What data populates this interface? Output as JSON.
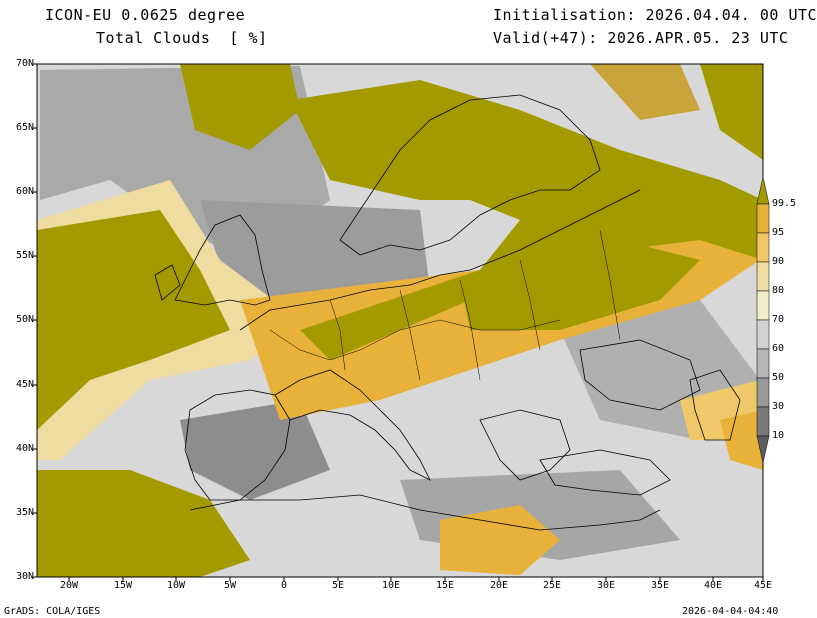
{
  "header": {
    "model": "ICON-EU 0.0625 degree",
    "variable": "Total Clouds  [ %]",
    "init": "Initialisation: 2026.04.04. 00 UTC",
    "valid": "Valid(+47): 2026.APR.05. 23 UTC"
  },
  "footer": {
    "software": "GrADS: COLA/IGES",
    "timestamp": "2026-04-04-04:40"
  },
  "map": {
    "lat_ticks": [
      "70N",
      "65N",
      "60N",
      "55N",
      "50N",
      "45N",
      "40N",
      "35N",
      "30N"
    ],
    "lon_ticks": [
      "20W",
      "15W",
      "10W",
      "5W",
      "0",
      "5E",
      "10E",
      "15E",
      "20E",
      "25E",
      "30E",
      "35E",
      "40E",
      "45E"
    ]
  },
  "colorbar": {
    "levels": [
      "99.5",
      "95",
      "90",
      "80",
      "70",
      "60",
      "50",
      "30",
      "10"
    ],
    "colors": [
      "#a39a00",
      "#e8b23a",
      "#f0c86a",
      "#efdca0",
      "#f1edc8",
      "#d2d2d2",
      "#b6b6b6",
      "#999999",
      "#7a7a7a",
      "#5d5d5d"
    ]
  }
}
